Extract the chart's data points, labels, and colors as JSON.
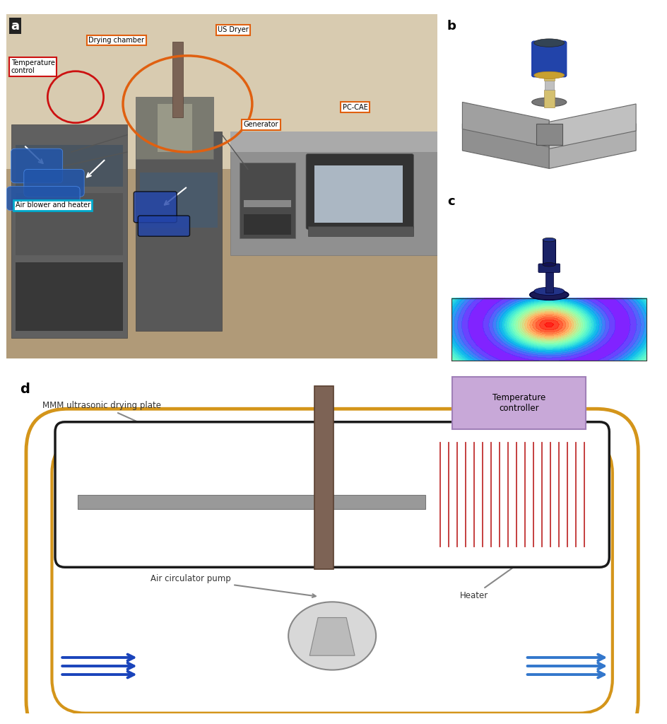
{
  "panel_a_bg": "#c8b49a",
  "panel_b_label": "b",
  "panel_c_label": "c",
  "panel_d": {
    "label": "d",
    "labels": {
      "mmm": "MMM ultrasonic drying plate",
      "temp_ctrl": "Temperature\ncontroller",
      "heater": "Heater",
      "pump": "Air circulator pump"
    },
    "colors": {
      "outer_loop": "#d4951a",
      "chamber_border": "#1a1a1a",
      "chamber_fill": "#ffffff",
      "transducer_rod": "#7d6355",
      "plate_color": "#999999",
      "heater_fill": "#ffffff",
      "heater_lines": "#c03030",
      "heater_arrows": "#c03030",
      "temp_ctrl_fill": "#c8a8d8",
      "temp_ctrl_border": "#a080b8",
      "pump_fill": "#d8d8d8",
      "pump_border": "#909090",
      "air_arrows_left": "#2255bb",
      "air_arrows_right": "#4488cc",
      "annotation_line": "#888888",
      "annotation_text": "#333333"
    }
  }
}
